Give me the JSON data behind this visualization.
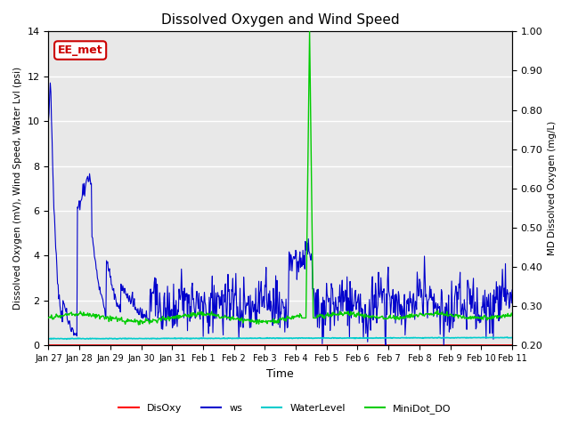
{
  "title": "Dissolved Oxygen and Wind Speed",
  "xlabel": "Time",
  "ylabel_left": "Dissolved Oxygen (mV), Wind Speed, Water Lvl (psi)",
  "ylabel_right": "MD Dissolved Oxygen (mg/L)",
  "ylim_left": [
    0,
    14
  ],
  "ylim_right": [
    0.2,
    1.0
  ],
  "yticks_left": [
    0,
    2,
    4,
    6,
    8,
    10,
    12,
    14
  ],
  "yticks_right": [
    0.2,
    0.3,
    0.4,
    0.5,
    0.6,
    0.7,
    0.8,
    0.9,
    1.0
  ],
  "xtick_labels": [
    "Jan 27",
    "Jan 28",
    "Jan 29",
    "Jan 30",
    "Jan 31",
    "Feb 1",
    "Feb 2",
    "Feb 3",
    "Feb 4",
    "Feb 5",
    "Feb 6",
    "Feb 7",
    "Feb 8",
    "Feb 9",
    "Feb 10",
    "Feb 11"
  ],
  "annotation_text": "EE_met",
  "annotation_color": "#cc0000",
  "background_color": "#e8e8e8",
  "colors": {
    "DisOxy": "#ff0000",
    "ws": "#0000cc",
    "WaterLevel": "#00cccc",
    "MiniDot_DO": "#00cc00"
  },
  "legend_labels": [
    "DisOxy",
    "ws",
    "WaterLevel",
    "MiniDot_DO"
  ],
  "figsize": [
    6.4,
    4.8
  ],
  "dpi": 100
}
